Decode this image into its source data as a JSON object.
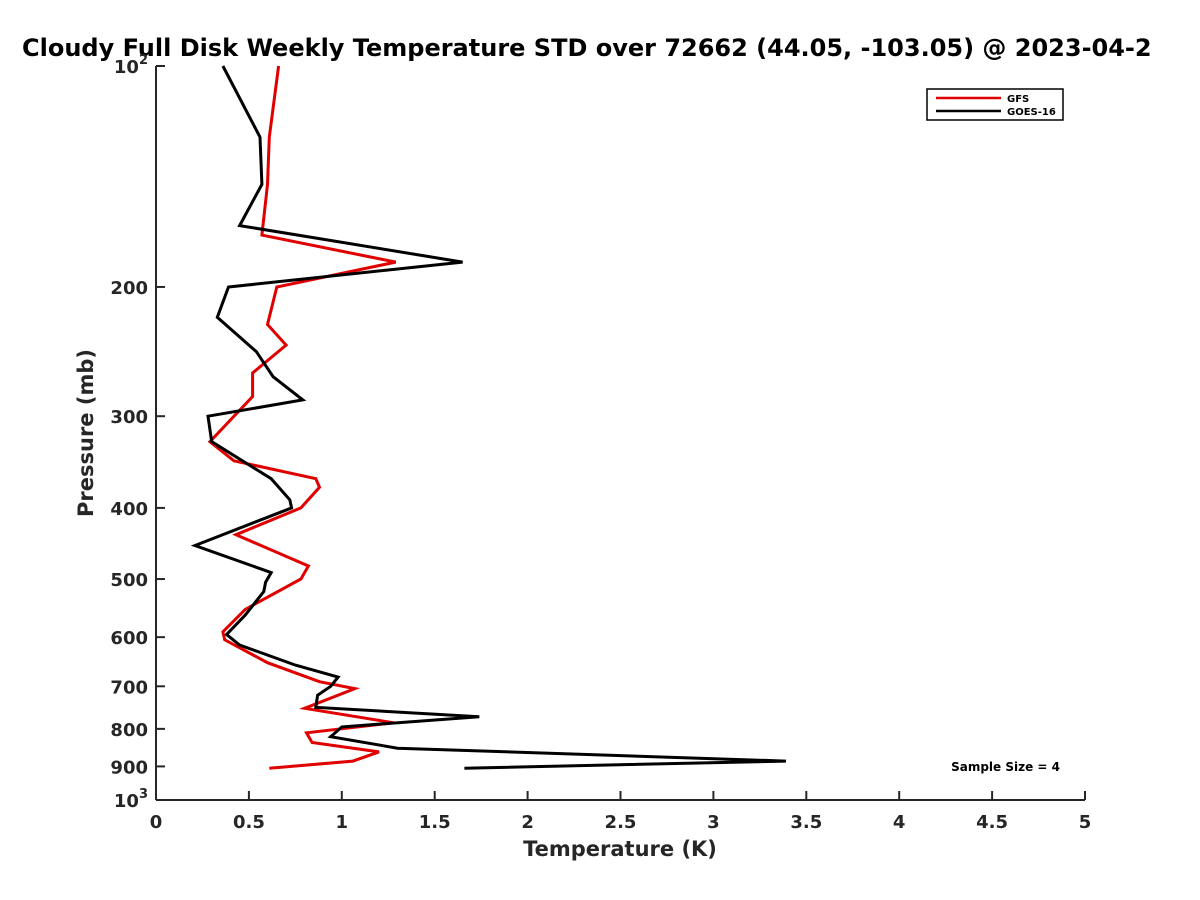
{
  "chart_data": {
    "type": "line",
    "title": "Cloudy Full Disk Weekly Temperature STD over 72662 (44.05, -103.05) @ 2023-04-2",
    "xlabel": "Temperature (K)",
    "ylabel": "Pressure (mb)",
    "xlim": [
      0,
      5
    ],
    "ylim": [
      1000,
      100
    ],
    "y_scale": "log",
    "y_reversed": true,
    "grid": false,
    "legend_position": "top-right",
    "x_ticks": [
      {
        "value": 0,
        "label": "0"
      },
      {
        "value": 0.5,
        "label": "0.5"
      },
      {
        "value": 1,
        "label": "1"
      },
      {
        "value": 1.5,
        "label": "1.5"
      },
      {
        "value": 2,
        "label": "2"
      },
      {
        "value": 2.5,
        "label": "2.5"
      },
      {
        "value": 3,
        "label": "3"
      },
      {
        "value": 3.5,
        "label": "3.5"
      },
      {
        "value": 4,
        "label": "4"
      },
      {
        "value": 4.5,
        "label": "4.5"
      },
      {
        "value": 5,
        "label": "5"
      }
    ],
    "y_ticks": [
      {
        "value": 100,
        "base": "10",
        "exp": "2"
      },
      {
        "value": 200,
        "label": "200"
      },
      {
        "value": 300,
        "label": "300"
      },
      {
        "value": 400,
        "label": "400"
      },
      {
        "value": 500,
        "label": "500"
      },
      {
        "value": 600,
        "label": "600"
      },
      {
        "value": 700,
        "label": "700"
      },
      {
        "value": 800,
        "label": "800"
      },
      {
        "value": 900,
        "label": "900"
      },
      {
        "value": 1000,
        "base": "10",
        "exp": "3"
      }
    ],
    "series": [
      {
        "name": "GFS",
        "color": "#e00000",
        "points": [
          {
            "x": 0.66,
            "p": 100
          },
          {
            "x": 0.61,
            "p": 125
          },
          {
            "x": 0.6,
            "p": 145
          },
          {
            "x": 0.57,
            "p": 170
          },
          {
            "x": 1.29,
            "p": 185
          },
          {
            "x": 0.65,
            "p": 200
          },
          {
            "x": 0.6,
            "p": 225
          },
          {
            "x": 0.7,
            "p": 240
          },
          {
            "x": 0.52,
            "p": 262
          },
          {
            "x": 0.52,
            "p": 282
          },
          {
            "x": 0.29,
            "p": 325
          },
          {
            "x": 0.42,
            "p": 345
          },
          {
            "x": 0.86,
            "p": 365
          },
          {
            "x": 0.88,
            "p": 375
          },
          {
            "x": 0.78,
            "p": 400
          },
          {
            "x": 0.43,
            "p": 435
          },
          {
            "x": 0.82,
            "p": 480
          },
          {
            "x": 0.78,
            "p": 500
          },
          {
            "x": 0.48,
            "p": 550
          },
          {
            "x": 0.36,
            "p": 590
          },
          {
            "x": 0.37,
            "p": 605
          },
          {
            "x": 0.6,
            "p": 650
          },
          {
            "x": 0.88,
            "p": 690
          },
          {
            "x": 1.07,
            "p": 705
          },
          {
            "x": 0.8,
            "p": 750
          },
          {
            "x": 1.28,
            "p": 785
          },
          {
            "x": 0.81,
            "p": 810
          },
          {
            "x": 0.84,
            "p": 835
          },
          {
            "x": 1.2,
            "p": 860
          },
          {
            "x": 1.06,
            "p": 885
          },
          {
            "x": 0.61,
            "p": 905
          }
        ]
      },
      {
        "name": "GOES-16",
        "color": "#000000",
        "points": [
          {
            "x": 0.36,
            "p": 100
          },
          {
            "x": 0.56,
            "p": 125
          },
          {
            "x": 0.57,
            "p": 145
          },
          {
            "x": 0.45,
            "p": 165
          },
          {
            "x": 1.65,
            "p": 185
          },
          {
            "x": 0.39,
            "p": 200
          },
          {
            "x": 0.33,
            "p": 220
          },
          {
            "x": 0.54,
            "p": 245
          },
          {
            "x": 0.63,
            "p": 265
          },
          {
            "x": 0.79,
            "p": 285
          },
          {
            "x": 0.28,
            "p": 300
          },
          {
            "x": 0.3,
            "p": 325
          },
          {
            "x": 0.62,
            "p": 365
          },
          {
            "x": 0.72,
            "p": 390
          },
          {
            "x": 0.73,
            "p": 400
          },
          {
            "x": 0.21,
            "p": 450
          },
          {
            "x": 0.62,
            "p": 490
          },
          {
            "x": 0.59,
            "p": 505
          },
          {
            "x": 0.58,
            "p": 520
          },
          {
            "x": 0.48,
            "p": 560
          },
          {
            "x": 0.38,
            "p": 595
          },
          {
            "x": 0.45,
            "p": 615
          },
          {
            "x": 0.75,
            "p": 655
          },
          {
            "x": 0.98,
            "p": 680
          },
          {
            "x": 0.94,
            "p": 700
          },
          {
            "x": 0.87,
            "p": 720
          },
          {
            "x": 0.86,
            "p": 748
          },
          {
            "x": 1.74,
            "p": 770
          },
          {
            "x": 1.0,
            "p": 795
          },
          {
            "x": 0.94,
            "p": 820
          },
          {
            "x": 1.3,
            "p": 850
          },
          {
            "x": 3.39,
            "p": 885
          },
          {
            "x": 1.66,
            "p": 905
          }
        ]
      }
    ],
    "annotation": "Sample Size = 4"
  }
}
